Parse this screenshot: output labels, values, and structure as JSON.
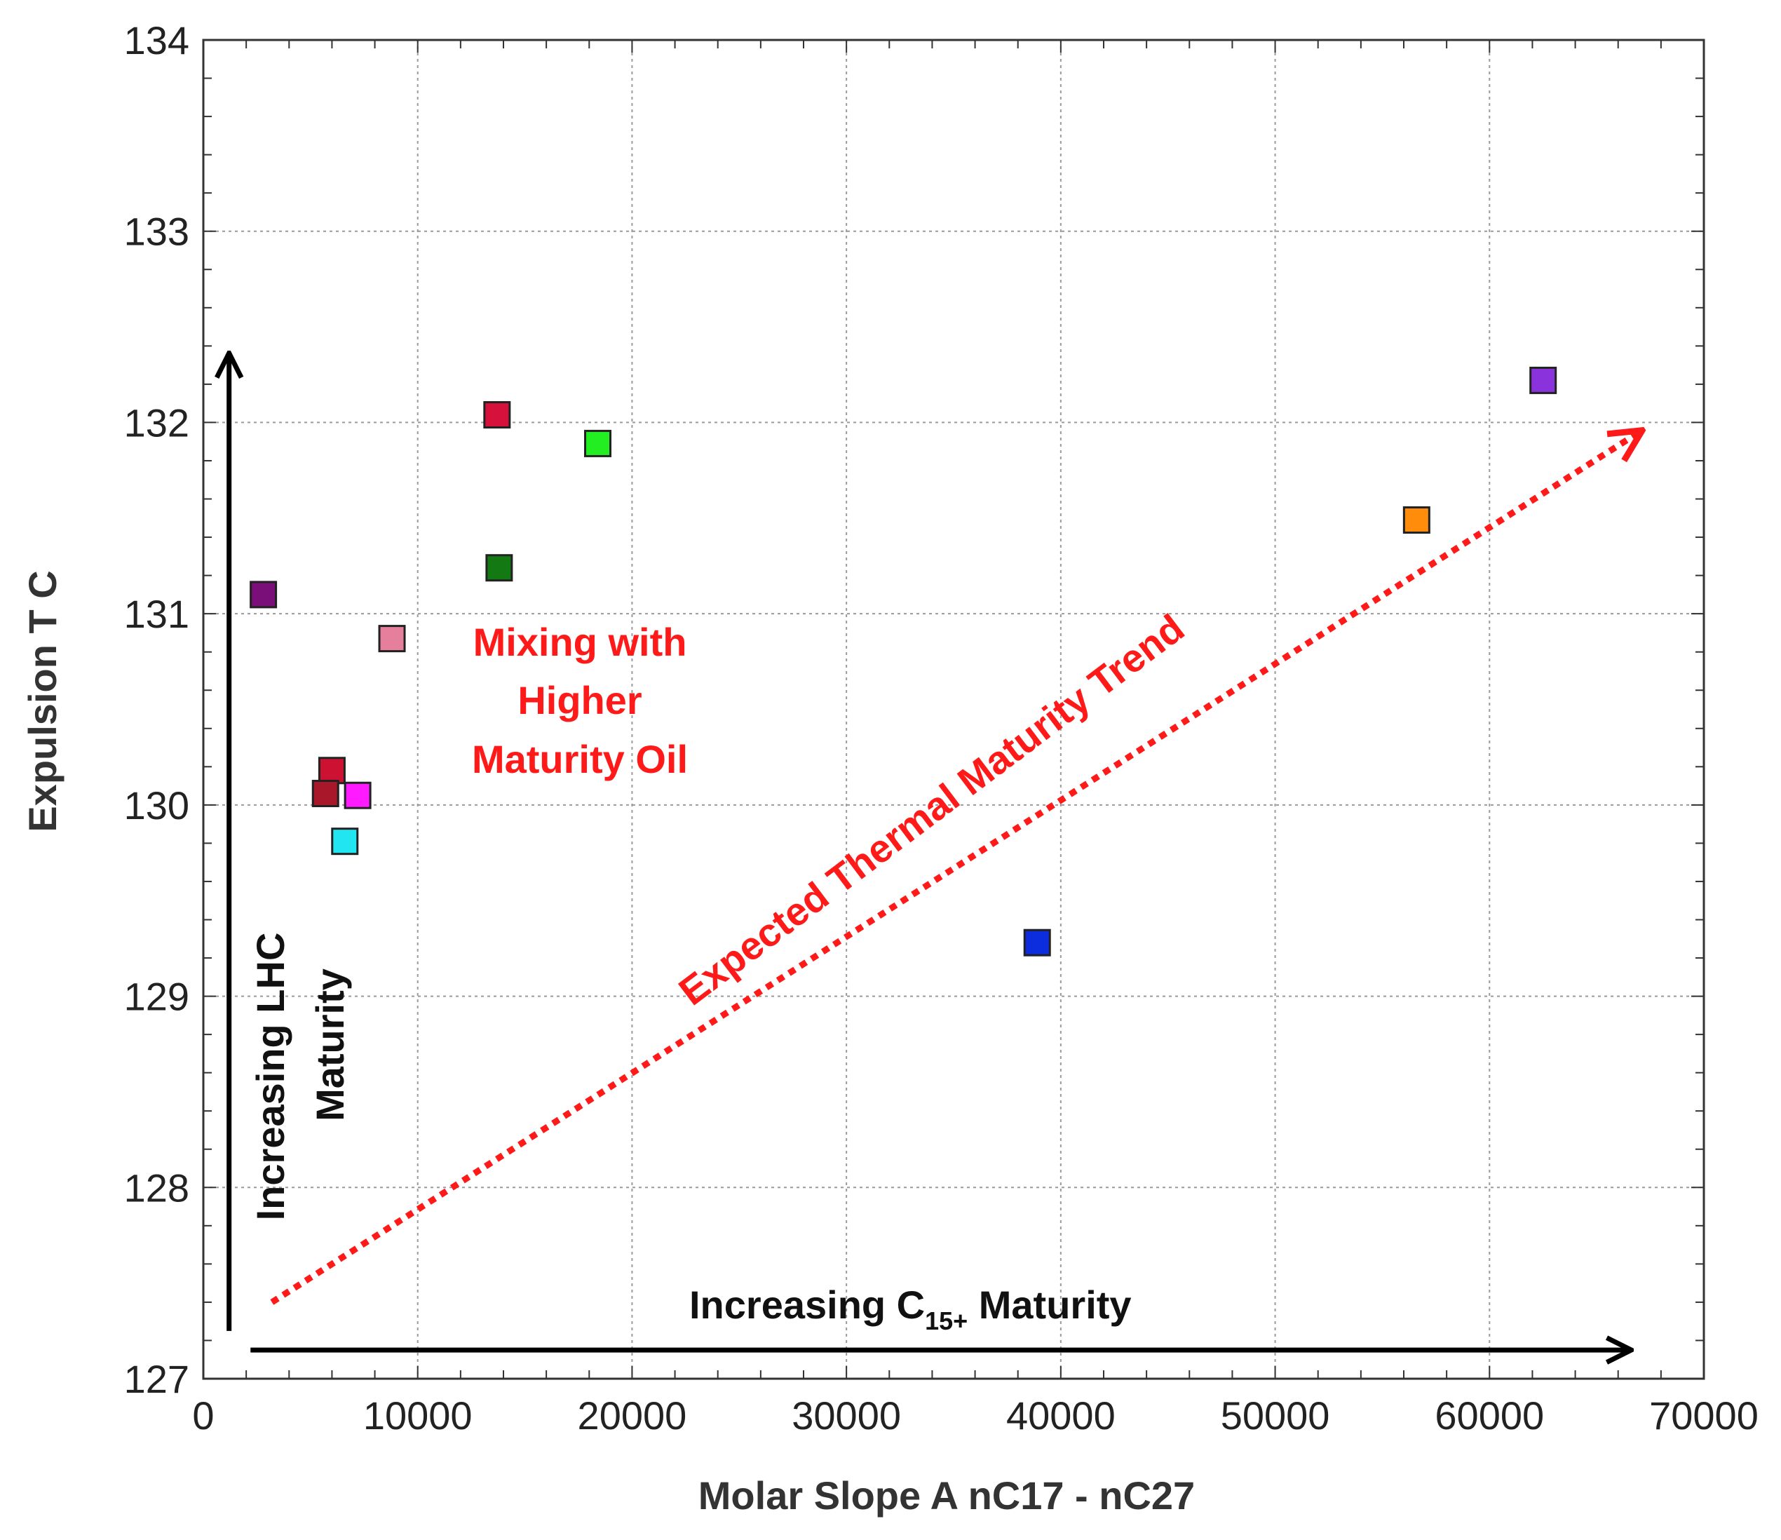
{
  "chart_data": {
    "type": "scatter",
    "title": "",
    "xlabel": "Molar Slope A nC17 - nC27",
    "ylabel": "Expulsion T C",
    "xlim": [
      0,
      70000
    ],
    "ylim": [
      127,
      134
    ],
    "x_ticks": [
      "0",
      "10000",
      "20000",
      "30000",
      "40000",
      "50000",
      "60000",
      "70000"
    ],
    "y_ticks": [
      "127",
      "128",
      "129",
      "130",
      "131",
      "132",
      "133",
      "134"
    ],
    "grid": true,
    "points": [
      {
        "x": 2800,
        "y": 131.1,
        "color": "#7a0f7a"
      },
      {
        "x": 8800,
        "y": 130.87,
        "color": "#e57f9b"
      },
      {
        "x": 6000,
        "y": 130.18,
        "color": "#cc1133"
      },
      {
        "x": 5700,
        "y": 130.06,
        "color": "#a8182a"
      },
      {
        "x": 7200,
        "y": 130.05,
        "color": "#ff1aff"
      },
      {
        "x": 6600,
        "y": 129.81,
        "color": "#22e5f2"
      },
      {
        "x": 13700,
        "y": 132.04,
        "color": "#d6123c"
      },
      {
        "x": 18400,
        "y": 131.89,
        "color": "#22ee22"
      },
      {
        "x": 13800,
        "y": 131.24,
        "color": "#137a13"
      },
      {
        "x": 38900,
        "y": 129.28,
        "color": "#0c2ddd"
      },
      {
        "x": 56600,
        "y": 131.49,
        "color": "#ff8c0a"
      },
      {
        "x": 62500,
        "y": 132.22,
        "color": "#8a33dd"
      }
    ],
    "annotations": {
      "mixing_line1": "Mixing with",
      "mixing_line2": "Higher",
      "mixing_line3": "Maturity Oil",
      "trend": "Expected Thermal Maturity Trend",
      "lhc_line1": "Increasing LHC",
      "lhc_line2": "Maturity",
      "c15_prefix": "Increasing C",
      "c15_sub": "15+",
      "c15_suffix": " Maturity"
    },
    "trend_arrow": {
      "from": [
        3200,
        127.4
      ],
      "to": [
        67000,
        131.95
      ],
      "color": "#ff1a1a"
    },
    "vertical_arrow": {
      "x": 1200,
      "from": 127.25,
      "to": 132.35
    },
    "horizontal_arrow": {
      "y": 127.15,
      "from": 2200,
      "to": 66500
    }
  }
}
